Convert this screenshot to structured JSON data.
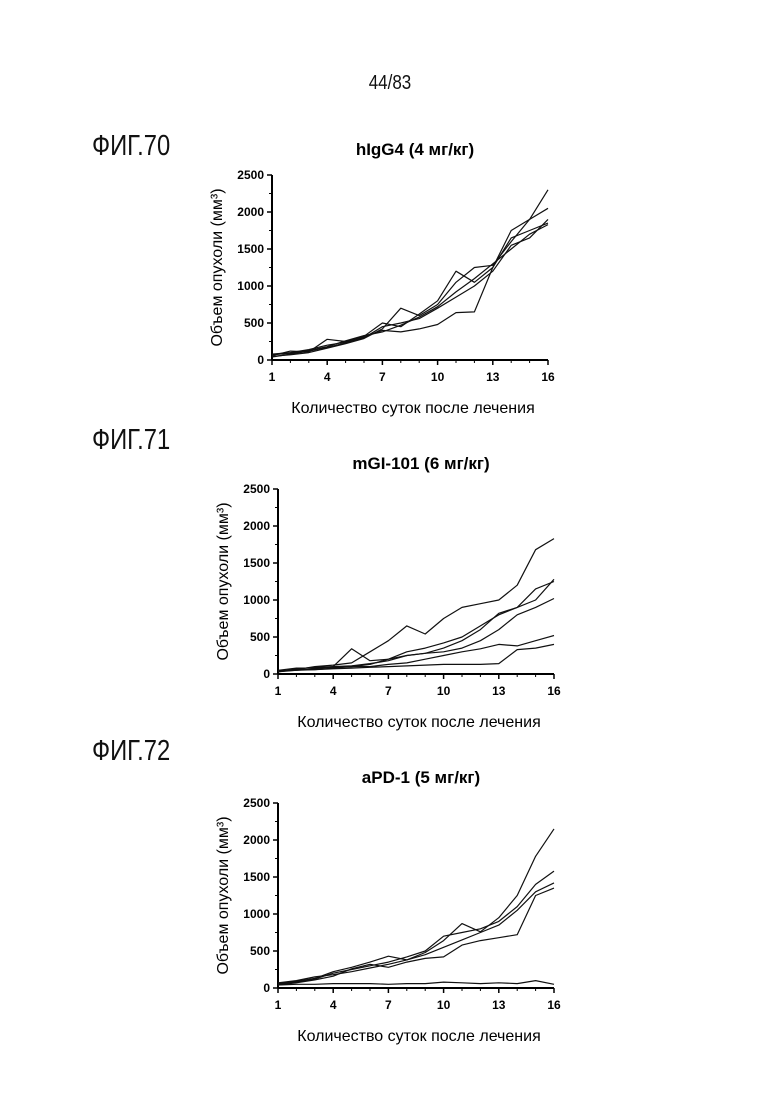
{
  "page_number": "44/83",
  "chart_data": [
    {
      "figure_label": "ФИГ.70",
      "type": "line",
      "title": "hIgG4 (4 мг/кг)",
      "xlabel": "Количество суток после лечения",
      "ylabel": "Объем опухоли (мм³)",
      "xlim": [
        1,
        16
      ],
      "ylim": [
        0,
        2500
      ],
      "xticks": [
        "1",
        "4",
        "7",
        "10",
        "13",
        "16"
      ],
      "yticks": [
        "0",
        "500",
        "1000",
        "1500",
        "2000",
        "2500"
      ],
      "x": [
        1,
        2,
        3,
        4,
        5,
        6,
        7,
        8,
        9,
        10,
        11,
        12,
        13,
        14,
        15,
        16
      ],
      "series": [
        {
          "values": [
            60,
            120,
            110,
            280,
            250,
            320,
            500,
            450,
            620,
            800,
            1200,
            1050,
            1250,
            1750,
            1900,
            2300
          ]
        },
        {
          "values": [
            50,
            70,
            100,
            160,
            220,
            290,
            420,
            700,
            600,
            750,
            1050,
            1250,
            1280,
            1600,
            1900,
            2050
          ]
        },
        {
          "values": [
            80,
            100,
            140,
            200,
            240,
            300,
            450,
            500,
            560,
            700,
            850,
            1000,
            1200,
            1550,
            1650,
            1900
          ]
        },
        {
          "values": [
            40,
            80,
            120,
            170,
            230,
            310,
            400,
            380,
            420,
            480,
            640,
            650,
            1250,
            1650,
            1750,
            1850
          ]
        },
        {
          "values": [
            70,
            90,
            130,
            180,
            260,
            330,
            380,
            470,
            580,
            720,
            920,
            1100,
            1300,
            1500,
            1700,
            1830
          ]
        }
      ]
    },
    {
      "figure_label": "ФИГ.71",
      "type": "line",
      "title": "mGI-101 (6 мг/кг)",
      "xlabel": "Количество суток после лечения",
      "ylabel": "Объем опухоли (мм³)",
      "xlim": [
        1,
        16
      ],
      "ylim": [
        0,
        2500
      ],
      "xticks": [
        "1",
        "4",
        "7",
        "10",
        "13",
        "16"
      ],
      "yticks": [
        "0",
        "500",
        "1000",
        "1500",
        "2000",
        "2500"
      ],
      "x": [
        1,
        2,
        3,
        4,
        5,
        6,
        7,
        8,
        9,
        10,
        11,
        12,
        13,
        14,
        15,
        16
      ],
      "series": [
        {
          "values": [
            40,
            60,
            100,
            120,
            150,
            300,
            450,
            650,
            540,
            750,
            900,
            950,
            1000,
            1200,
            1680,
            1830
          ]
        },
        {
          "values": [
            30,
            70,
            90,
            100,
            340,
            180,
            200,
            250,
            280,
            350,
            450,
            600,
            820,
            900,
            1000,
            1280
          ]
        },
        {
          "values": [
            50,
            80,
            80,
            90,
            100,
            130,
            200,
            300,
            350,
            420,
            500,
            650,
            800,
            900,
            1150,
            1250
          ]
        },
        {
          "values": [
            40,
            50,
            70,
            100,
            110,
            140,
            180,
            250,
            280,
            300,
            350,
            450,
            600,
            800,
            900,
            1020
          ]
        },
        {
          "values": [
            30,
            60,
            60,
            80,
            100,
            100,
            130,
            150,
            200,
            250,
            300,
            340,
            400,
            380,
            450,
            520
          ]
        },
        {
          "values": [
            30,
            50,
            60,
            70,
            80,
            90,
            100,
            110,
            120,
            130,
            130,
            130,
            140,
            330,
            350,
            400
          ]
        }
      ]
    },
    {
      "figure_label": "ФИГ.72",
      "type": "line",
      "title": "aPD-1 (5 мг/кг)",
      "xlabel": "Количество суток после лечения",
      "ylabel": "Объем опухоли (мм³)",
      "xlim": [
        1,
        16
      ],
      "ylim": [
        0,
        2500
      ],
      "xticks": [
        "1",
        "4",
        "7",
        "10",
        "13",
        "16"
      ],
      "yticks": [
        "0",
        "500",
        "1000",
        "1500",
        "2000",
        "2500"
      ],
      "x": [
        1,
        2,
        3,
        4,
        5,
        6,
        7,
        8,
        9,
        10,
        11,
        12,
        13,
        14,
        15,
        16
      ],
      "series": [
        {
          "values": [
            60,
            90,
            130,
            220,
            280,
            350,
            430,
            380,
            480,
            640,
            870,
            760,
            950,
            1250,
            1780,
            2150
          ]
        },
        {
          "values": [
            50,
            80,
            120,
            200,
            250,
            300,
            350,
            420,
            500,
            700,
            750,
            800,
            900,
            1100,
            1400,
            1580
          ]
        },
        {
          "values": [
            70,
            100,
            150,
            180,
            220,
            270,
            320,
            380,
            450,
            550,
            650,
            750,
            850,
            1050,
            1300,
            1420
          ]
        },
        {
          "values": [
            40,
            70,
            110,
            160,
            260,
            320,
            280,
            350,
            400,
            420,
            580,
            640,
            680,
            720,
            1250,
            1350
          ]
        },
        {
          "values": [
            40,
            50,
            50,
            60,
            60,
            60,
            50,
            60,
            60,
            80,
            70,
            60,
            70,
            60,
            100,
            50
          ]
        }
      ]
    }
  ]
}
